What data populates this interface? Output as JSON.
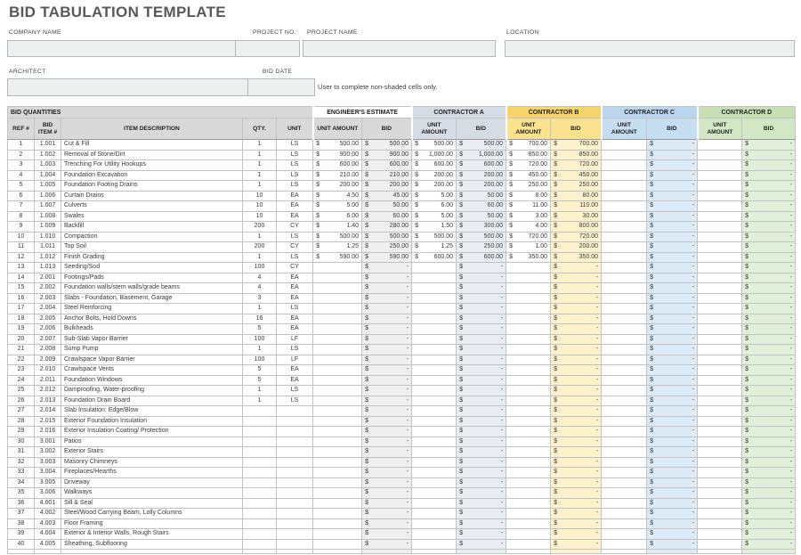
{
  "title": "BID TABULATION TEMPLATE",
  "form": {
    "company_name_label": "COMPANY NAME",
    "project_no_label": "PROJECT NO.",
    "project_name_label": "PROJECT NAME",
    "location_label": "LOCATION",
    "architect_label": "ARCHITECT",
    "bid_date_label": "BID DATE",
    "note": "User to complete non-shaded cells only.",
    "company_name_value": "",
    "project_no_value": "",
    "project_name_value": "",
    "location_value": "",
    "architect_value": "",
    "bid_date_value": ""
  },
  "table": {
    "sections": {
      "bid_quantities": "BID QUANTITIES",
      "engineers_estimate": "ENGINEER'S ESTIMATE",
      "contractor_a": "CONTRACTOR A",
      "contractor_b": "CONTRACTOR B",
      "contractor_c": "CONTRACTOR C",
      "contractor_d": "CONTRACTOR D"
    },
    "columns": {
      "ref": "REF #",
      "bid_item": "BID ITEM #",
      "description": "ITEM DESCRIPTION",
      "qty": "QTY.",
      "unit": "UNIT",
      "unit_amount": "UNIT AMOUNT",
      "bid": "BID"
    },
    "currency_symbol": "$",
    "rows": [
      [
        "1",
        "1.001",
        "Cut & Fill",
        "1",
        "LS",
        "500.00",
        "500.00",
        "500.00",
        "500.00",
        "700.00",
        "700.00",
        "",
        "-",
        "",
        "-"
      ],
      [
        "2",
        "1.002",
        "Removal of Stone/Dirt",
        "1",
        "LS",
        "900.00",
        "900.00",
        "1,000.00",
        "1,000.00",
        "850.00",
        "850.00",
        "",
        "-",
        "",
        "-"
      ],
      [
        "3",
        "1.003",
        "Trenching For Utility Hookups",
        "1",
        "LS",
        "600.00",
        "600.00",
        "600.00",
        "600.00",
        "720.00",
        "720.00",
        "",
        "-",
        "",
        "-"
      ],
      [
        "4",
        "1.004",
        "Foundation Excavation",
        "1",
        "LS",
        "210.00",
        "210.00",
        "200.00",
        "200.00",
        "450.00",
        "450.00",
        "",
        "-",
        "",
        "-"
      ],
      [
        "5",
        "1.005",
        "Foundation Footing Drains",
        "1",
        "LS",
        "200.00",
        "200.00",
        "200.00",
        "200.00",
        "250.00",
        "250.00",
        "",
        "-",
        "",
        "-"
      ],
      [
        "6",
        "1.006",
        "Curtain Drains",
        "10",
        "EA",
        "4.50",
        "45.00",
        "5.00",
        "50.00",
        "8.00",
        "80.00",
        "",
        "-",
        "",
        "-"
      ],
      [
        "7",
        "1.007",
        "Culverts",
        "10",
        "EA",
        "5.00",
        "50.00",
        "6.00",
        "60.00",
        "11.00",
        "110.00",
        "",
        "-",
        "",
        "-"
      ],
      [
        "8",
        "1.008",
        "Swales",
        "10",
        "EA",
        "6.00",
        "60.00",
        "5.00",
        "50.00",
        "3.00",
        "30.00",
        "",
        "-",
        "",
        "-"
      ],
      [
        "9",
        "1.009",
        "Backfill",
        "200",
        "CY",
        "1.40",
        "280.00",
        "1.50",
        "300.00",
        "4.00",
        "800.00",
        "",
        "-",
        "",
        "-"
      ],
      [
        "10",
        "1.010",
        "Compaction",
        "1",
        "LS",
        "500.00",
        "500.00",
        "500.00",
        "500.00",
        "720.00",
        "720.00",
        "",
        "-",
        "",
        "-"
      ],
      [
        "11",
        "1.011",
        "Top Soil",
        "200",
        "CY",
        "1.25",
        "250.00",
        "1.25",
        "250.00",
        "1.00",
        "200.00",
        "",
        "-",
        "",
        "-"
      ],
      [
        "12",
        "1.012",
        "Finish Grading",
        "1",
        "LS",
        "590.00",
        "590.00",
        "600.00",
        "600.00",
        "350.00",
        "350.00",
        "",
        "-",
        "",
        "-"
      ],
      [
        "13",
        "1.013",
        "Seeding/Sod",
        "100",
        "CY",
        "",
        "-",
        "",
        "-",
        "",
        "-",
        "",
        "-",
        "",
        "-"
      ],
      [
        "14",
        "2.001",
        "Footings/Pads",
        "4",
        "EA",
        "",
        "-",
        "",
        "-",
        "",
        "-",
        "",
        "-",
        "",
        "-"
      ],
      [
        "15",
        "2.002",
        "Foundation walls/stem walls/grade beams",
        "4",
        "EA",
        "",
        "-",
        "",
        "-",
        "",
        "-",
        "",
        "-",
        "",
        "-"
      ],
      [
        "16",
        "2.003",
        "Slabs - Foundation, Basement, Garage",
        "3",
        "EA",
        "",
        "-",
        "",
        "-",
        "",
        "-",
        "",
        "-",
        "",
        "-"
      ],
      [
        "17",
        "2.004",
        "Steel Reinforcing",
        "1",
        "LS",
        "",
        "-",
        "",
        "-",
        "",
        "-",
        "",
        "-",
        "",
        "-"
      ],
      [
        "18",
        "2.005",
        "Anchor Bolts, Hold Downs",
        "16",
        "EA",
        "",
        "-",
        "",
        "-",
        "",
        "-",
        "",
        "-",
        "",
        "-"
      ],
      [
        "19",
        "2.006",
        "Bulkheads",
        "5",
        "EA",
        "",
        "-",
        "",
        "-",
        "",
        "-",
        "",
        "-",
        "",
        "-"
      ],
      [
        "20",
        "2.007",
        "Sub-Slab Vapor Barrier",
        "100",
        "LF",
        "",
        "-",
        "",
        "-",
        "",
        "-",
        "",
        "-",
        "",
        "-"
      ],
      [
        "21",
        "2.008",
        "Sump Pump",
        "1",
        "LS",
        "",
        "-",
        "",
        "-",
        "",
        "-",
        "",
        "-",
        "",
        "-"
      ],
      [
        "22",
        "2.009",
        "Crawlspace Vapor Barrier",
        "100",
        "LF",
        "",
        "-",
        "",
        "-",
        "",
        "-",
        "",
        "-",
        "",
        "-"
      ],
      [
        "23",
        "2.010",
        "Crawlspace Vents",
        "5",
        "EA",
        "",
        "-",
        "",
        "-",
        "",
        "-",
        "",
        "-",
        "",
        "-"
      ],
      [
        "24",
        "2.011",
        "Foundation Windows",
        "5",
        "EA",
        "",
        "-",
        "",
        "-",
        "",
        "-",
        "",
        "-",
        "",
        "-"
      ],
      [
        "25",
        "2.012",
        "Damproofing, Water-proofing",
        "1",
        "LS",
        "",
        "-",
        "",
        "-",
        "",
        "-",
        "",
        "-",
        "",
        "-"
      ],
      [
        "26",
        "2.013",
        "Foundation Drain Board",
        "1",
        "LS",
        "",
        "-",
        "",
        "-",
        "",
        "-",
        "",
        "-",
        "",
        "-"
      ],
      [
        "27",
        "2.014",
        "Slab Insulation: Edge/Blow",
        "",
        "",
        "",
        "-",
        "",
        "-",
        "",
        "-",
        "",
        "-",
        "",
        "-"
      ],
      [
        "28",
        "2.015",
        "Exterior Foundation Insulation",
        "",
        "",
        "",
        "-",
        "",
        "-",
        "",
        "-",
        "",
        "-",
        "",
        "-"
      ],
      [
        "29",
        "2.016",
        "Exterior Insulation Coating/ Protection",
        "",
        "",
        "",
        "-",
        "",
        "-",
        "",
        "-",
        "",
        "-",
        "",
        "-"
      ],
      [
        "30",
        "3.001",
        "Patios",
        "",
        "",
        "",
        "-",
        "",
        "-",
        "",
        "-",
        "",
        "-",
        "",
        "-"
      ],
      [
        "31",
        "3.002",
        "Exterior Stairs",
        "",
        "",
        "",
        "-",
        "",
        "-",
        "",
        "-",
        "",
        "-",
        "",
        "-"
      ],
      [
        "32",
        "3.003",
        "Masonry Chimneys",
        "",
        "",
        "",
        "-",
        "",
        "-",
        "",
        "-",
        "",
        "-",
        "",
        "-"
      ],
      [
        "33",
        "3.004",
        "Fireplaces/Hearths",
        "",
        "",
        "",
        "-",
        "",
        "-",
        "",
        "-",
        "",
        "-",
        "",
        "-"
      ],
      [
        "34",
        "3.005",
        "Driveway",
        "",
        "",
        "",
        "-",
        "",
        "-",
        "",
        "-",
        "",
        "-",
        "",
        "-"
      ],
      [
        "35",
        "3.006",
        "Walkways",
        "",
        "",
        "",
        "-",
        "",
        "-",
        "",
        "-",
        "",
        "-",
        "",
        "-"
      ],
      [
        "36",
        "4.001",
        "Sill & Seal",
        "",
        "",
        "",
        "-",
        "",
        "-",
        "",
        "-",
        "",
        "-",
        "",
        "-"
      ],
      [
        "37",
        "4.002",
        "Steel/Wood Carrying Beam, Lolly Columns",
        "",
        "",
        "",
        "-",
        "",
        "-",
        "",
        "-",
        "",
        "-",
        "",
        "-"
      ],
      [
        "38",
        "4.003",
        "Floor Framing",
        "",
        "",
        "",
        "-",
        "",
        "-",
        "",
        "-",
        "",
        "-",
        "",
        "-"
      ],
      [
        "39",
        "4.004",
        "Exterior & Interior Walls, Rough Stairs",
        "",
        "",
        "",
        "-",
        "",
        "-",
        "",
        "-",
        "",
        "-",
        "",
        "-"
      ],
      [
        "40",
        "4.005",
        "Sheathing, Subflooring",
        "",
        "",
        "",
        "-",
        "",
        "-",
        "",
        "-",
        "",
        "-",
        "",
        "-"
      ]
    ]
  },
  "colors": {
    "title_text": "#58595b",
    "field_bg": "#eef0f0",
    "header_gray": "#d9d9d9",
    "engineers_estimate_bid_cell": "#efefef",
    "contractor_a_header": "#d6dce4",
    "contractor_a_subheader": "#d6dce4",
    "contractor_a_bid_cell": "#e9edf3",
    "contractor_b_header": "#f7d469",
    "contractor_b_subheader": "#fae28e",
    "contractor_b_bid_cell": "#fdf2cc",
    "contractor_c_header": "#bad6ee",
    "contractor_c_subheader": "#c5def2",
    "contractor_c_bid_cell": "#ddebf7",
    "contractor_d_header": "#c6e0b4",
    "contractor_d_subheader": "#d2e7c4",
    "contractor_d_bid_cell": "#e2efda"
  }
}
